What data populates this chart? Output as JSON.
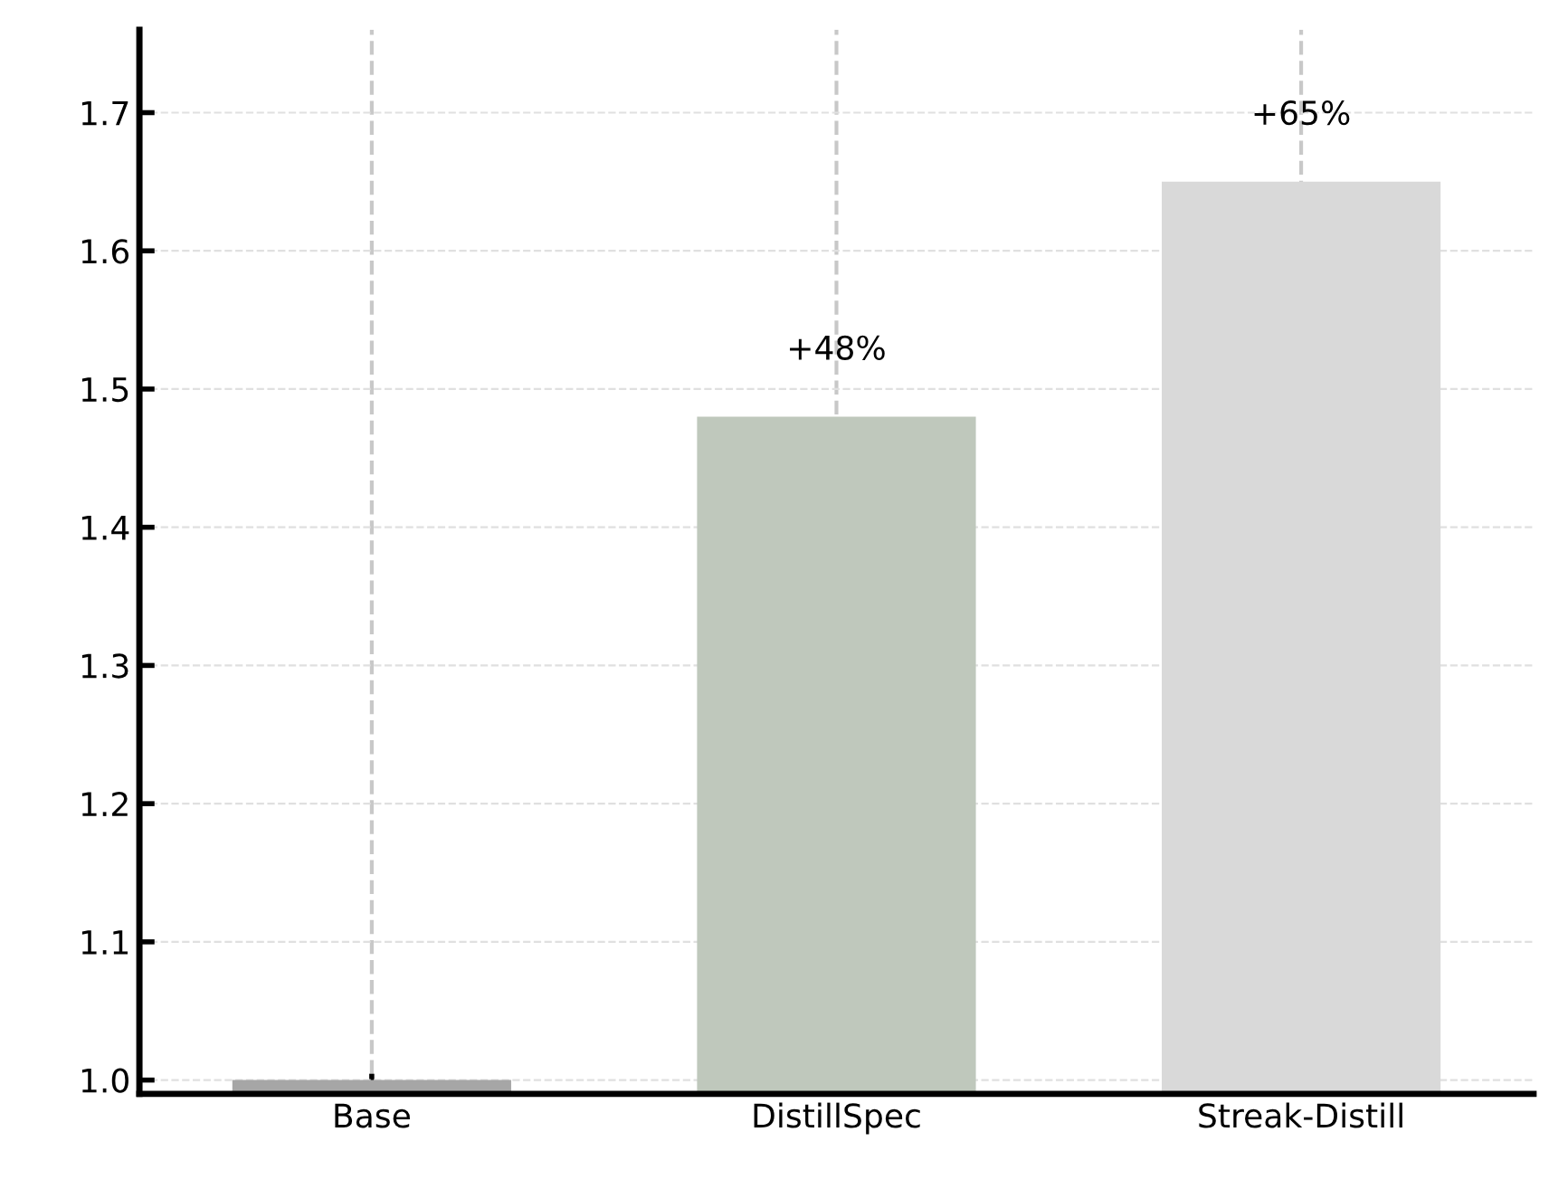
{
  "chart_data": {
    "type": "bar",
    "categories": [
      "Base",
      "DistillSpec",
      "Streak-Distill"
    ],
    "values": [
      1.0,
      1.48,
      1.65
    ],
    "colors": [
      "#a6a6a6",
      "#bfc8bc",
      "#d9d9d9"
    ],
    "annotations": [
      {
        "text": "+48%",
        "x": "DistillSpec",
        "y": 1.48
      },
      {
        "text": "+65%",
        "x": "Streak-Distill",
        "y": 1.65
      }
    ],
    "ylim": [
      0.99,
      1.76
    ],
    "yticks": [
      {
        "value": 1.0,
        "label": "1.0"
      },
      {
        "value": 1.1,
        "label": "1.1"
      },
      {
        "value": 1.2,
        "label": "1.2"
      },
      {
        "value": 1.3,
        "label": "1.3"
      },
      {
        "value": 1.4,
        "label": "1.4"
      },
      {
        "value": 1.5,
        "label": "1.5"
      },
      {
        "value": 1.6,
        "label": "1.6"
      },
      {
        "value": 1.7,
        "label": "1.7"
      }
    ],
    "grid": true
  }
}
